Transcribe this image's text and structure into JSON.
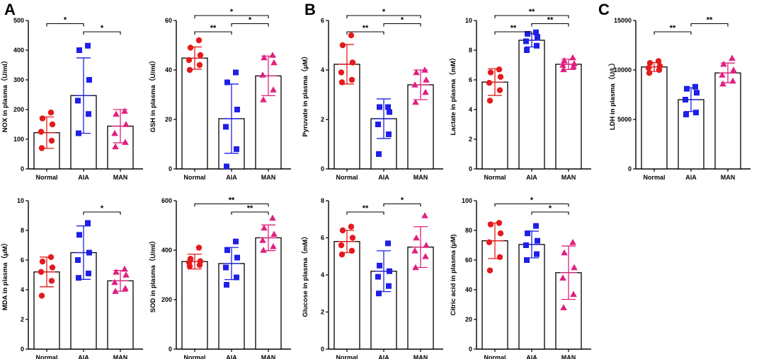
{
  "panel_letters": [
    "A",
    "B",
    "C"
  ],
  "colors": {
    "Normal": "#e41a1c",
    "AIA": "#1f1fe6",
    "MAN": "#e0207f",
    "bar": "#000000"
  },
  "chart_data": [
    {
      "id": "nox",
      "panel": "A",
      "type": "bar",
      "ylabel": "NOX in plasma（U/ml）",
      "ylim": [
        0,
        500
      ],
      "yticks": [
        0,
        100,
        200,
        300,
        400,
        500
      ],
      "ytick_labels": [
        "0",
        "100",
        "200",
        "300",
        "400",
        "500"
      ],
      "categories": [
        "Normal",
        "AIA",
        "MAN"
      ],
      "means": [
        122,
        247,
        144
      ],
      "sd": [
        53,
        127,
        56
      ],
      "points": [
        [
          70,
          95,
          125,
          150,
          170,
          190
        ],
        [
          120,
          185,
          230,
          300,
          400,
          415
        ],
        [
          75,
          90,
          120,
          150,
          185,
          195
        ]
      ],
      "significance": [
        {
          "between": [
            1,
            2
          ],
          "label": "*"
        },
        {
          "between": [
            0,
            1
          ],
          "label": "*"
        }
      ]
    },
    {
      "id": "gsh",
      "panel": "A",
      "type": "bar",
      "ylabel": "GSH in plasma（U/ml）",
      "ylim": [
        0,
        60
      ],
      "yticks": [
        0,
        20,
        40,
        60
      ],
      "ytick_labels": [
        "0",
        "20",
        "40",
        "60"
      ],
      "categories": [
        "Normal",
        "AIA",
        "MAN"
      ],
      "means": [
        44.8,
        20.3,
        37.6
      ],
      "sd": [
        4.5,
        14,
        8
      ],
      "points": [
        [
          40,
          42,
          44,
          46,
          49,
          52
        ],
        [
          1,
          8,
          17,
          24,
          35,
          39
        ],
        [
          28,
          32,
          38,
          43,
          45,
          46
        ]
      ],
      "significance": [
        {
          "between": [
            0,
            1
          ],
          "label": "**"
        },
        {
          "between": [
            1,
            2
          ],
          "label": "*"
        },
        {
          "between": [
            0,
            2
          ],
          "label": "*"
        }
      ]
    },
    {
      "id": "mda",
      "panel": "A",
      "type": "bar",
      "ylabel": "MDA in plasma（μM）",
      "ylim": [
        0,
        10
      ],
      "yticks": [
        0,
        2,
        4,
        6,
        8,
        10
      ],
      "ytick_labels": [
        "0",
        "2",
        "4",
        "6",
        "8",
        "10"
      ],
      "categories": [
        "Normal",
        "AIA",
        "MAN"
      ],
      "means": [
        5.2,
        6.5,
        4.6
      ],
      "sd": [
        1.0,
        1.8,
        0.7
      ],
      "points": [
        [
          3.6,
          4.6,
          5.2,
          5.5,
          5.9,
          6.2
        ],
        [
          4.8,
          5.1,
          6.0,
          6.5,
          7.7,
          8.5
        ],
        [
          3.9,
          4.1,
          4.5,
          5.0,
          5.2,
          5.4
        ]
      ],
      "significance": [
        {
          "between": [
            1,
            2
          ],
          "label": "*"
        }
      ]
    },
    {
      "id": "sod",
      "panel": "A",
      "type": "bar",
      "ylabel": "SOD in plasma（U/ml）",
      "ylim": [
        0,
        600
      ],
      "yticks": [
        0,
        200,
        400,
        600
      ],
      "ytick_labels": [
        "0",
        "200",
        "400",
        "600"
      ],
      "categories": [
        "Normal",
        "AIA",
        "MAN"
      ],
      "means": [
        354,
        346,
        450
      ],
      "sd": [
        30,
        65,
        52
      ],
      "points": [
        [
          335,
          340,
          350,
          355,
          365,
          410
        ],
        [
          260,
          290,
          330,
          370,
          400,
          435
        ],
        [
          400,
          415,
          440,
          465,
          490,
          530
        ]
      ],
      "significance": [
        {
          "between": [
            1,
            2
          ],
          "label": "**"
        },
        {
          "between": [
            0,
            2
          ],
          "label": "**"
        }
      ]
    },
    {
      "id": "pyruvate",
      "panel": "B",
      "type": "bar",
      "ylabel": "Pyruvate in plasma（μM）",
      "ylim": [
        0,
        6
      ],
      "yticks": [
        0,
        2,
        4,
        6
      ],
      "ytick_labels": [
        "0",
        "2",
        "4",
        "6"
      ],
      "categories": [
        "Normal",
        "AIA",
        "MAN"
      ],
      "means": [
        4.23,
        2.03,
        3.4
      ],
      "sd": [
        0.8,
        0.8,
        0.6
      ],
      "points": [
        [
          3.5,
          3.6,
          3.9,
          4.3,
          5.0,
          5.4
        ],
        [
          0.6,
          1.4,
          1.8,
          2.3,
          2.5,
          2.5
        ],
        [
          2.7,
          3.1,
          3.4,
          3.6,
          3.9,
          4.0
        ]
      ],
      "significance": [
        {
          "between": [
            0,
            1
          ],
          "label": "**"
        },
        {
          "between": [
            1,
            2
          ],
          "label": "*"
        },
        {
          "between": [
            0,
            2
          ],
          "label": "*"
        }
      ]
    },
    {
      "id": "lactate",
      "panel": "B",
      "type": "bar",
      "ylabel": "Lactate in plasma（mM）",
      "ylim": [
        0,
        10
      ],
      "yticks": [
        0,
        2,
        4,
        6,
        8,
        10
      ],
      "ytick_labels": [
        "0",
        "2",
        "4",
        "6",
        "8",
        "10"
      ],
      "categories": [
        "Normal",
        "AIA",
        "MAN"
      ],
      "means": [
        5.85,
        8.67,
        7.05
      ],
      "sd": [
        0.9,
        0.45,
        0.35
      ],
      "points": [
        [
          4.6,
          5.3,
          5.8,
          6.2,
          6.5,
          6.7
        ],
        [
          8.0,
          8.3,
          8.6,
          8.9,
          9.1,
          9.2
        ],
        [
          6.7,
          6.9,
          7.0,
          7.1,
          7.3,
          7.5
        ]
      ],
      "significance": [
        {
          "between": [
            0,
            1
          ],
          "label": "**"
        },
        {
          "between": [
            1,
            2
          ],
          "label": "**"
        },
        {
          "between": [
            0,
            2
          ],
          "label": "**"
        }
      ]
    },
    {
      "id": "glucose",
      "panel": "B",
      "type": "bar",
      "ylabel": "Glucose in plasma（mM）",
      "ylim": [
        0,
        8
      ],
      "yticks": [
        0,
        2,
        4,
        6,
        8
      ],
      "ytick_labels": [
        "0",
        "2",
        "4",
        "6",
        "8"
      ],
      "categories": [
        "Normal",
        "AIA",
        "MAN"
      ],
      "means": [
        5.8,
        4.2,
        5.5
      ],
      "sd": [
        0.6,
        1.1,
        1.1
      ],
      "points": [
        [
          5.1,
          5.3,
          5.6,
          6.0,
          6.4,
          6.6
        ],
        [
          3.0,
          3.4,
          3.9,
          4.2,
          4.5,
          5.7
        ],
        [
          4.4,
          5.0,
          5.3,
          5.6,
          6.0,
          7.2
        ]
      ],
      "significance": [
        {
          "between": [
            0,
            1
          ],
          "label": "**"
        },
        {
          "between": [
            1,
            2
          ],
          "label": "*"
        }
      ]
    },
    {
      "id": "citric",
      "panel": "B",
      "type": "bar",
      "ylabel": "Citric acid in plasma (μM)",
      "ylim": [
        0,
        100
      ],
      "yticks": [
        0,
        20,
        40,
        60,
        80,
        100
      ],
      "ytick_labels": [
        "0",
        "20",
        "40",
        "60",
        "80",
        "100"
      ],
      "categories": [
        "Normal",
        "AIA",
        "MAN"
      ],
      "means": [
        73,
        70.5,
        51.5
      ],
      "sd": [
        12,
        9,
        18
      ],
      "points": [
        [
          53,
          62,
          72,
          78,
          84,
          85
        ],
        [
          60,
          64,
          70,
          73,
          78,
          83
        ],
        [
          28,
          37,
          48,
          55,
          65,
          72
        ]
      ],
      "significance": [
        {
          "between": [
            1,
            2
          ],
          "label": "*"
        },
        {
          "between": [
            0,
            2
          ],
          "label": "*"
        }
      ]
    },
    {
      "id": "ldh",
      "panel": "C",
      "type": "bar",
      "ylabel": "LDH in plasma（U/L）",
      "ylim": [
        0,
        15000
      ],
      "yticks": [
        0,
        5000,
        10000,
        15000
      ],
      "ytick_labels": [
        "0",
        "5000",
        "10000",
        "15000"
      ],
      "categories": [
        "Normal",
        "AIA",
        "MAN"
      ],
      "means": [
        10300,
        7000,
        9700
      ],
      "sd": [
        450,
        1200,
        1000
      ],
      "points": [
        [
          9700,
          10000,
          10200,
          10400,
          10700,
          10900
        ],
        [
          5500,
          5700,
          7000,
          7700,
          8100,
          8300
        ],
        [
          8600,
          8900,
          9500,
          10000,
          10600,
          11200
        ]
      ],
      "significance": [
        {
          "between": [
            0,
            1
          ],
          "label": "**"
        },
        {
          "between": [
            1,
            2
          ],
          "label": "**"
        }
      ]
    }
  ]
}
